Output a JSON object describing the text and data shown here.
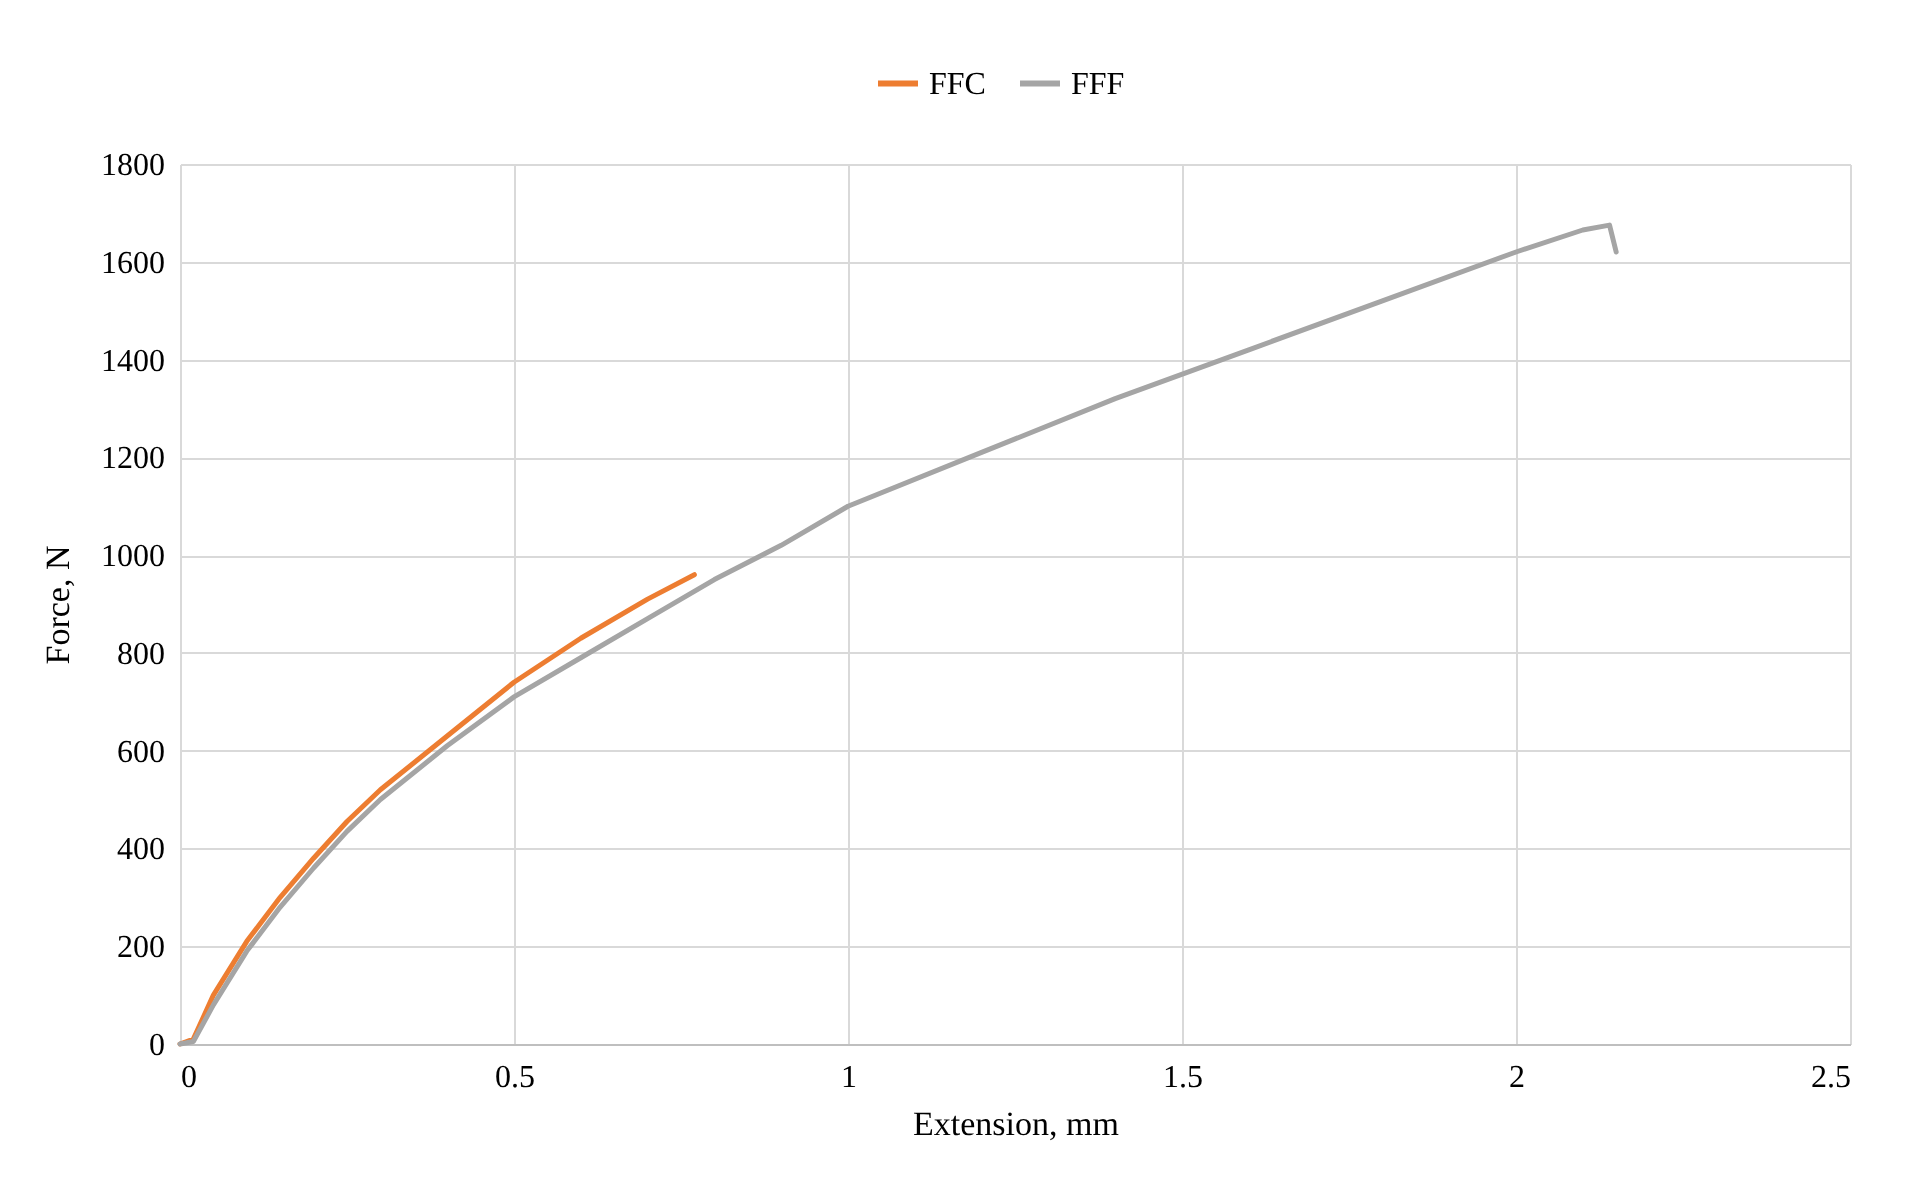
{
  "chart_data": {
    "type": "line",
    "xlabel": "Extension, mm",
    "ylabel": "Force, N",
    "xlim": [
      0,
      2.5
    ],
    "xticks": [
      0,
      0.5,
      1,
      1.5,
      2,
      2.5
    ],
    "ylim": [
      0,
      1800
    ],
    "yticks": [
      0,
      200,
      400,
      600,
      800,
      1000,
      1200,
      1400,
      1600,
      1800
    ],
    "grid": true,
    "legend": "top",
    "marker": "none",
    "line_style": "solid",
    "series": [
      {
        "name": "FFC",
        "color": "#ed7d31",
        "x": [
          0,
          0.02,
          0.05,
          0.1,
          0.15,
          0.2,
          0.25,
          0.3,
          0.4,
          0.5,
          0.6,
          0.7,
          0.77
        ],
        "values": [
          0,
          10,
          100,
          210,
          300,
          380,
          455,
          520,
          630,
          740,
          830,
          910,
          960
        ]
      },
      {
        "name": "FFF",
        "color": "#a5a5a5",
        "x": [
          0,
          0.02,
          0.05,
          0.1,
          0.15,
          0.2,
          0.25,
          0.3,
          0.4,
          0.5,
          0.6,
          0.7,
          0.8,
          0.9,
          1,
          1.2,
          1.4,
          1.6,
          1.8,
          2,
          2.1,
          2.14,
          2.15
        ],
        "values": [
          0,
          5,
          80,
          190,
          280,
          360,
          435,
          500,
          610,
          710,
          790,
          870,
          950,
          1020,
          1100,
          1210,
          1320,
          1420,
          1520,
          1620,
          1665,
          1675,
          1620
        ]
      }
    ]
  }
}
